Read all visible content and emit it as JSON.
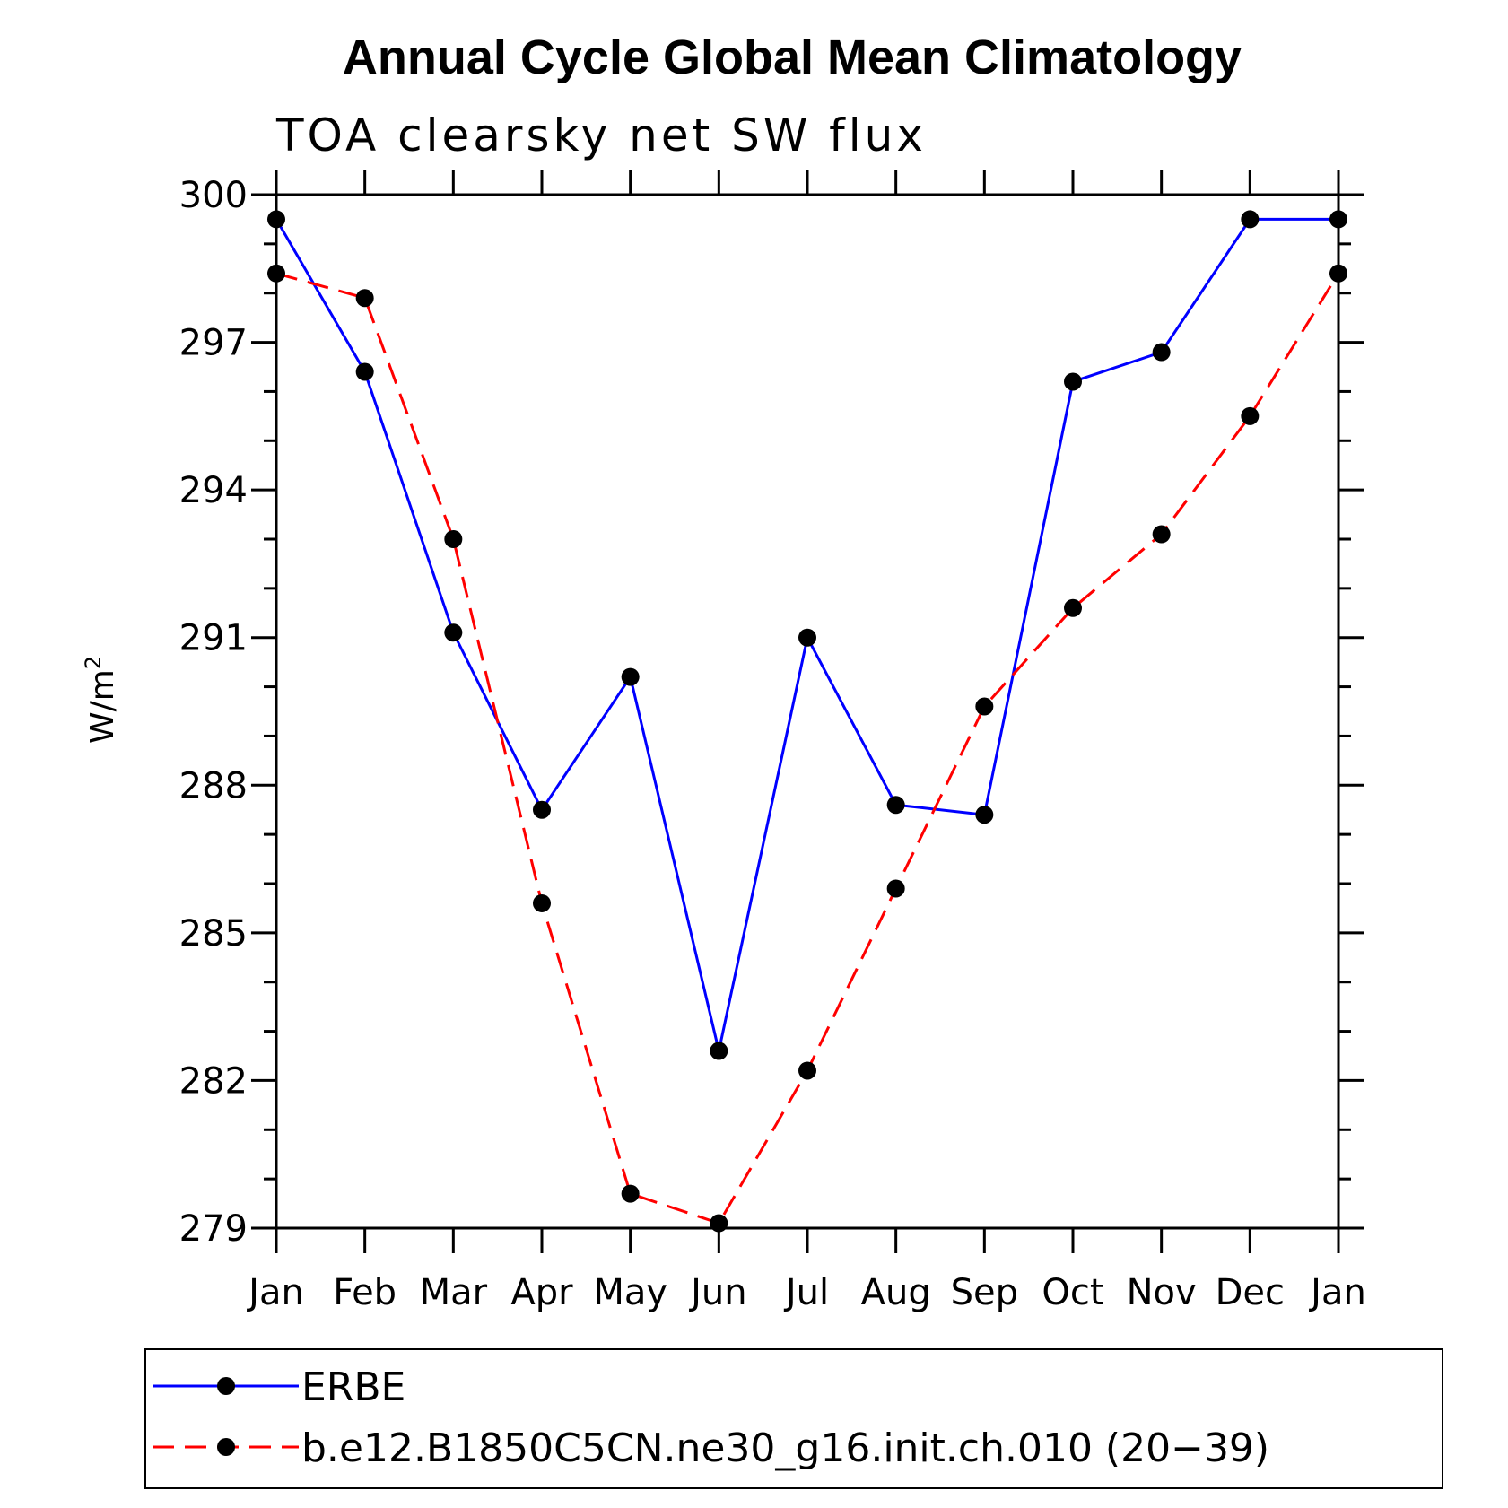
{
  "chart_data": {
    "type": "line",
    "title": "Annual Cycle Global Mean Climatology",
    "subtitle": "TOA clearsky net SW flux",
    "xlabel": "",
    "ylabel": "W/m",
    "ylabel_superscript": "2",
    "categories": [
      "Jan",
      "Feb",
      "Mar",
      "Apr",
      "May",
      "Jun",
      "Jul",
      "Aug",
      "Sep",
      "Oct",
      "Nov",
      "Dec",
      "Jan"
    ],
    "ylim": [
      279,
      300
    ],
    "yticks": [
      279,
      282,
      285,
      288,
      291,
      294,
      297,
      300
    ],
    "grid": false,
    "legend_position": "bottom",
    "series": [
      {
        "name": "ERBE",
        "color": "#0000ff",
        "dash": "solid",
        "marker": "filled-circle",
        "values": [
          299.5,
          296.4,
          291.1,
          287.5,
          290.2,
          282.6,
          291.0,
          287.6,
          287.4,
          296.2,
          296.8,
          299.5,
          299.5
        ]
      },
      {
        "name": "b.e12.B1850C5CN.ne30_g16.init.ch.010 (20−39)",
        "color": "#ff0000",
        "dash": "dashed",
        "marker": "filled-circle",
        "values": [
          298.4,
          297.9,
          293.0,
          285.6,
          279.7,
          279.1,
          282.2,
          285.9,
          289.6,
          291.6,
          293.1,
          295.5,
          298.4
        ]
      }
    ]
  }
}
